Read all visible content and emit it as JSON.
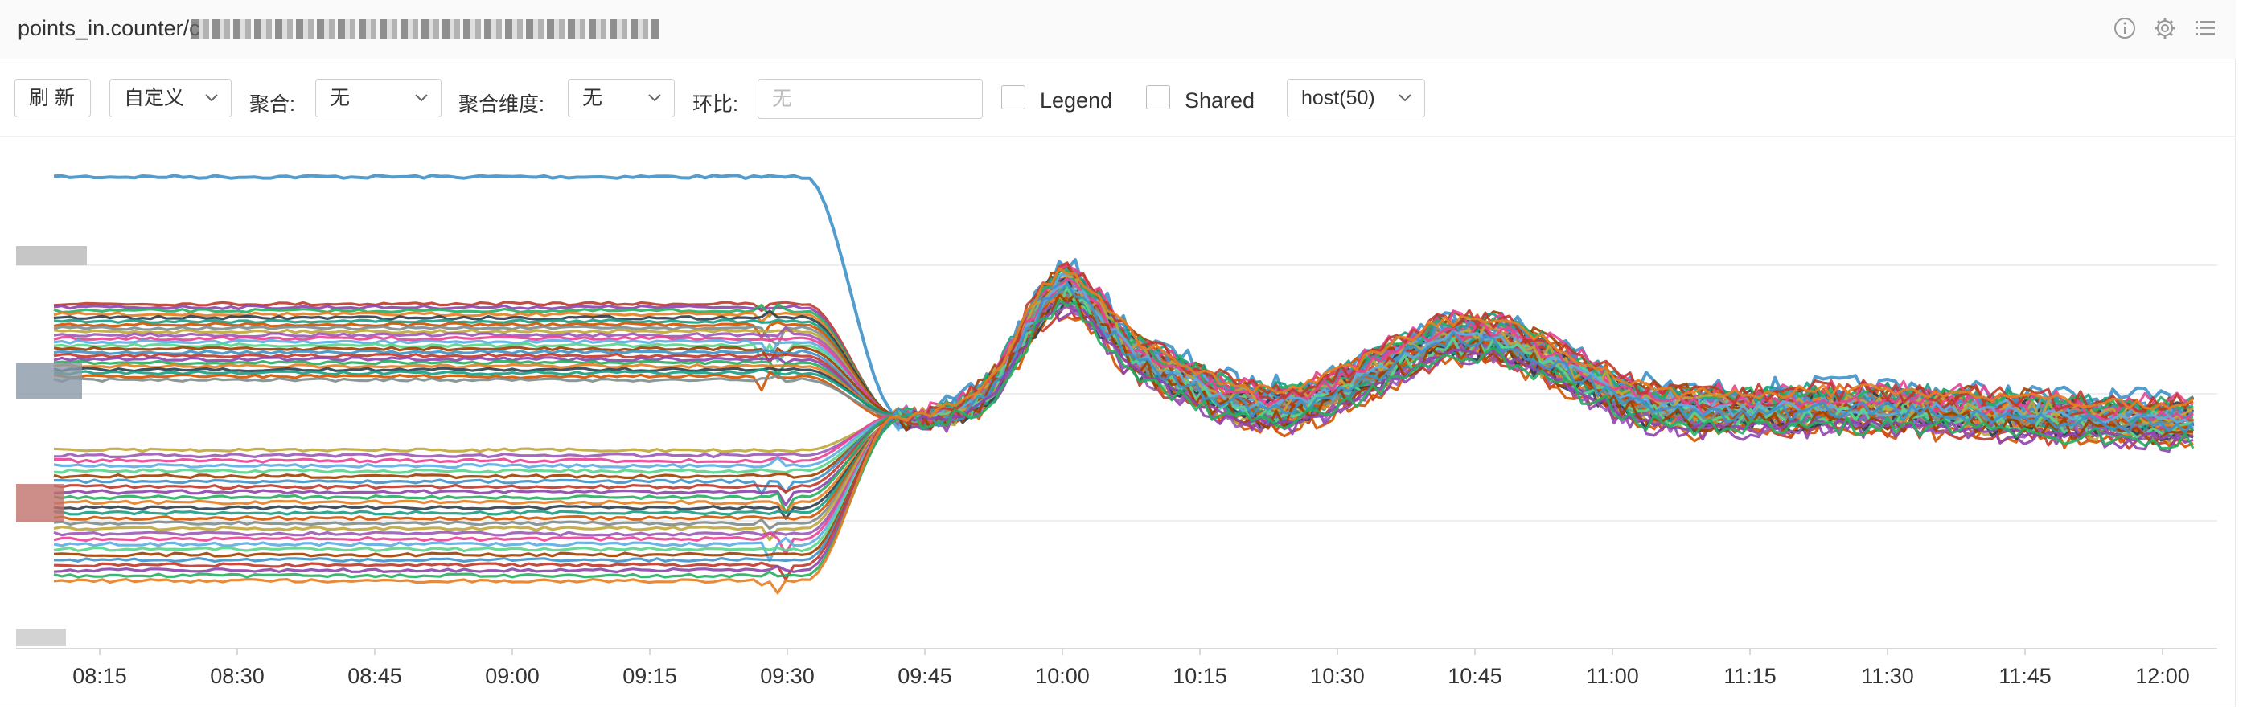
{
  "header": {
    "title": "points_in.counter/c",
    "icons": [
      "info-icon",
      "gear-icon",
      "menu-list-icon"
    ]
  },
  "toolbar": {
    "refresh_label": "刷 新",
    "time_range_label": "自定义",
    "aggregate_label": "聚合:",
    "aggregate_value": "无",
    "aggregate_dim_label": "聚合维度:",
    "aggregate_dim_value": "无",
    "ratio_label": "环比:",
    "ratio_placeholder": "无",
    "legend_label": "Legend",
    "shared_label": "Shared",
    "host_label": "host(50)"
  },
  "chart_data": {
    "type": "line",
    "x_ticks": [
      "08:15",
      "08:30",
      "08:45",
      "09:00",
      "09:15",
      "09:30",
      "09:45",
      "10:00",
      "10:15",
      "10:30",
      "10:45",
      "11:00",
      "11:15",
      "11:30",
      "11:45",
      "12:00"
    ],
    "x_range": [
      "08:10",
      "12:04"
    ],
    "series_count": 50,
    "legend_visible": false,
    "grid": "horizontal",
    "series_colors": [
      "#3f92c8",
      "#c0392b",
      "#8e44ad",
      "#27ae60",
      "#e67e22",
      "#2c3e50",
      "#16a085",
      "#d35400",
      "#7f8c8d",
      "#c0a63a",
      "#9b59b6",
      "#e84393",
      "#5dade2",
      "#58d68d",
      "#a04000"
    ],
    "notes": "Per-host series: flat at distinct levels before ~09:35, then all converge to a shared noisy curve peaking near 10:00 and 10:45."
  }
}
